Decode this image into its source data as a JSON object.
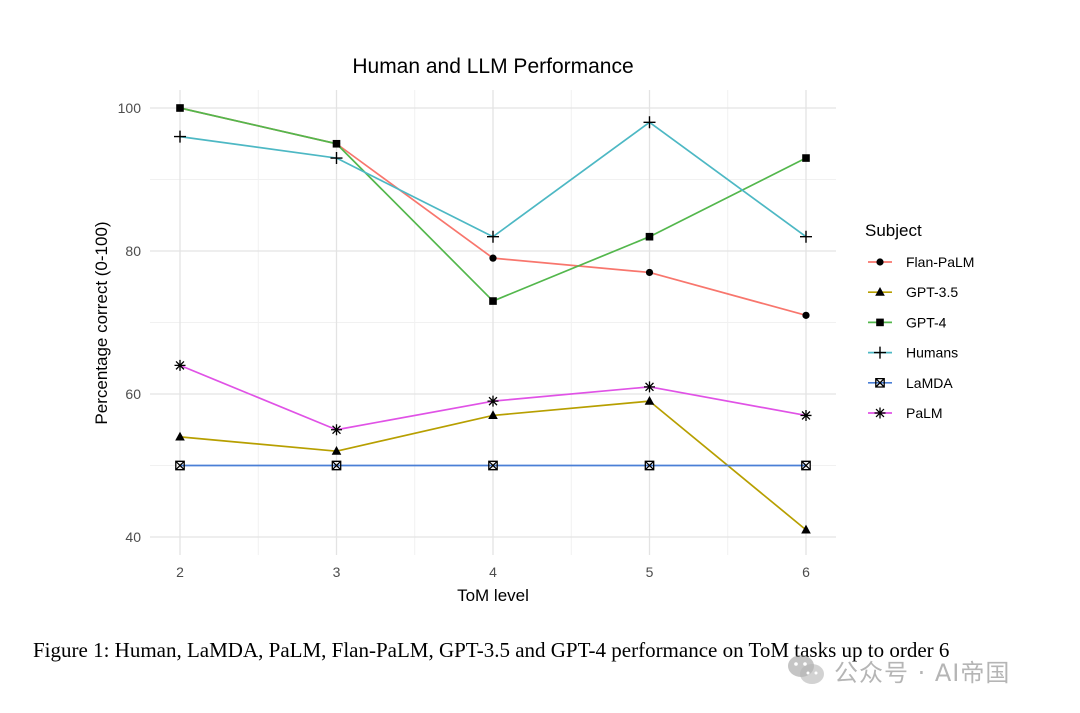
{
  "chart_data": {
    "type": "line",
    "title": "Human and LLM Performance",
    "xlabel": "ToM level",
    "ylabel": "Percentage correct (0-100)",
    "x": [
      2,
      3,
      4,
      5,
      6
    ],
    "xlim": [
      2,
      6
    ],
    "ylim": [
      40,
      100
    ],
    "yticks": [
      40,
      60,
      80,
      100
    ],
    "grid": true,
    "legend": {
      "title": "Subject",
      "position": "right"
    },
    "series": [
      {
        "name": "Flan-PaLM",
        "color": "#F8766D",
        "marker": "circle",
        "values": [
          100,
          95,
          79,
          77,
          71
        ]
      },
      {
        "name": "GPT-3.5",
        "color": "#B79F00",
        "marker": "triangle",
        "values": [
          54,
          52,
          57,
          59,
          41
        ]
      },
      {
        "name": "GPT-4",
        "color": "#53B74C",
        "marker": "square",
        "values": [
          100,
          95,
          73,
          82,
          93
        ]
      },
      {
        "name": "Humans",
        "color": "#4DB8C4",
        "marker": "plus",
        "values": [
          96,
          93,
          82,
          98,
          82
        ]
      },
      {
        "name": "LaMDA",
        "color": "#4A7FD6",
        "marker": "boxx",
        "values": [
          50,
          50,
          50,
          50,
          50
        ]
      },
      {
        "name": "PaLM",
        "color": "#E052E6",
        "marker": "asterisk",
        "values": [
          64,
          55,
          59,
          61,
          57
        ]
      }
    ]
  },
  "caption": {
    "text": "Figure 1: Human, LaMDA, PaLM, Flan-PaLM, GPT-3.5 and GPT-4 performance on ToM tasks up to order 6"
  },
  "watermark": {
    "text": "公众号 · AI帝国",
    "icon": "wechat-icon"
  }
}
